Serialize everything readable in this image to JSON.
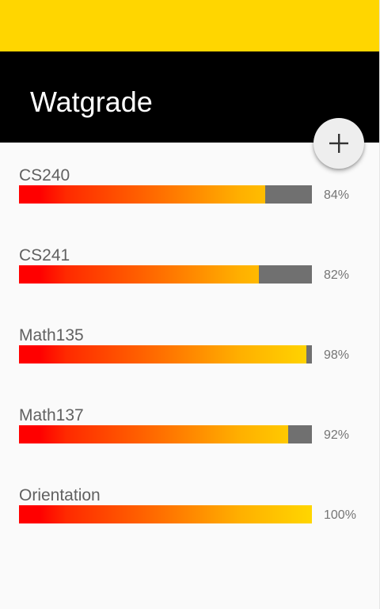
{
  "app": {
    "title": "Watgrade",
    "colors": {
      "status_bar": "#ffd600",
      "app_bar": "#000000",
      "bar_track": "#707070",
      "bar_start": "#ff0000",
      "bar_end": "#ffd600"
    },
    "fab_icon": "plus-icon"
  },
  "courses": [
    {
      "name": "CS240",
      "percent_label": "84%",
      "progress": 0.84
    },
    {
      "name": "CS241",
      "percent_label": "82%",
      "progress": 0.82
    },
    {
      "name": "Math135",
      "percent_label": "98%",
      "progress": 0.98
    },
    {
      "name": "Math137",
      "percent_label": "92%",
      "progress": 0.92
    },
    {
      "name": "Orientation",
      "percent_label": "100%",
      "progress": 1.0
    }
  ]
}
